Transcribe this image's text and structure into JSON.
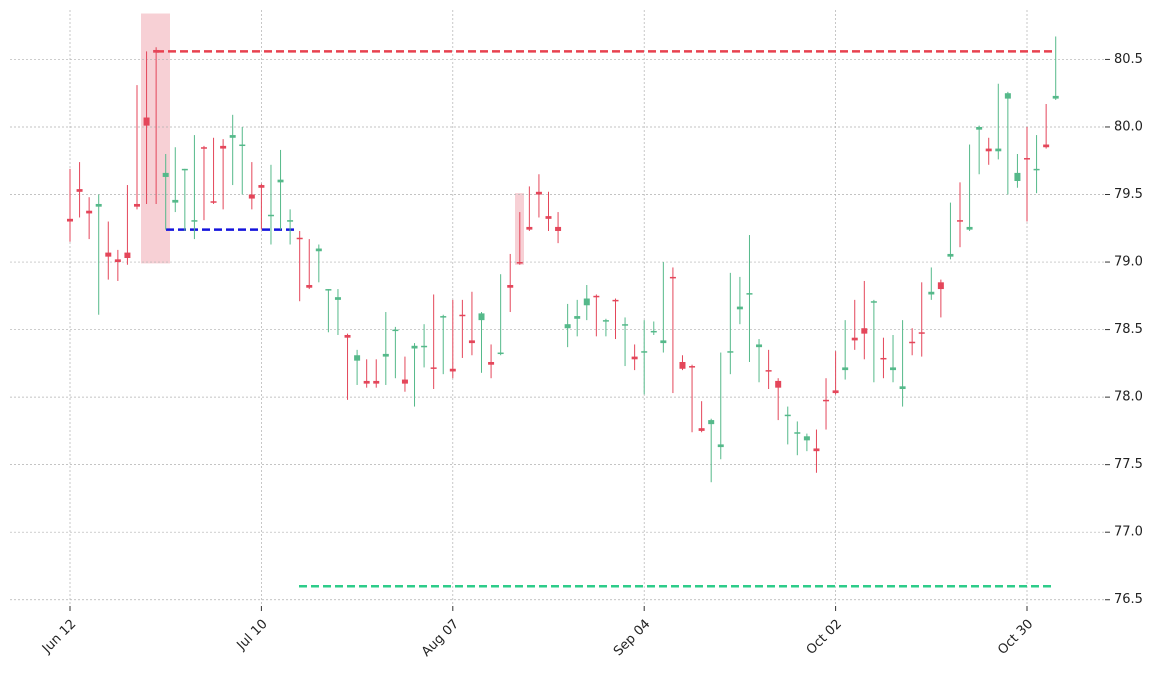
{
  "chart_data": {
    "type": "candlestick",
    "categories": [
      "Jun 12",
      null,
      null,
      null,
      null,
      null,
      null,
      null,
      null,
      null,
      null,
      null,
      null,
      null,
      null,
      null,
      null,
      null,
      null,
      null,
      "Jul 10",
      null,
      null,
      null,
      null,
      null,
      null,
      null,
      null,
      null,
      null,
      null,
      null,
      null,
      null,
      null,
      null,
      null,
      null,
      null,
      "Aug 07",
      null,
      null,
      null,
      null,
      null,
      null,
      null,
      null,
      null,
      null,
      null,
      null,
      null,
      null,
      null,
      null,
      null,
      null,
      null,
      "Sep 04",
      null,
      null,
      null,
      null,
      null,
      null,
      null,
      null,
      null,
      null,
      null,
      null,
      null,
      null,
      null,
      null,
      null,
      null,
      null,
      "Oct 02",
      null,
      null,
      null,
      null,
      null,
      null,
      null,
      null,
      null,
      null,
      null,
      null,
      null,
      null,
      null,
      null,
      null,
      null,
      null,
      "Oct 30",
      null,
      null,
      null
    ],
    "open": [
      79.32,
      79.54,
      79.38,
      79.41,
      79.07,
      79.02,
      79.07,
      79.43,
      80.07,
      80.57,
      79.63,
      79.44,
      79.68,
      79.3,
      79.85,
      79.45,
      79.86,
      79.92,
      79.86,
      79.5,
      79.57,
      79.34,
      79.59,
      79.3,
      79.18,
      78.83,
      79.08,
      78.79,
      78.72,
      78.46,
      78.27,
      78.12,
      78.12,
      78.3,
      78.49,
      78.13,
      78.36,
      78.37,
      78.22,
      78.59,
      78.21,
      78.61,
      78.42,
      78.57,
      78.26,
      78.32,
      78.83,
      79.0,
      79.26,
      79.52,
      79.34,
      79.26,
      78.51,
      78.58,
      78.68,
      78.75,
      78.56,
      78.72,
      78.53,
      78.3,
      78.33,
      78.48,
      78.4,
      78.89,
      78.26,
      78.23,
      77.77,
      77.8,
      77.63,
      78.33,
      78.65,
      78.76,
      78.37,
      78.2,
      78.12,
      77.86,
      77.73,
      77.68,
      77.62,
      77.98,
      78.05,
      78.2,
      78.44,
      78.51,
      78.7,
      78.29,
      78.2,
      78.06,
      78.41,
      78.48,
      78.76,
      78.85,
      79.04,
      79.31,
      79.24,
      79.98,
      79.84,
      79.82,
      80.21,
      79.6,
      79.77,
      79.68,
      79.87,
      80.21
    ],
    "high": [
      79.69,
      79.74,
      79.48,
      79.5,
      79.3,
      79.09,
      79.57,
      80.31,
      80.56,
      80.59,
      79.8,
      79.85,
      79.69,
      79.94,
      79.86,
      79.92,
      79.91,
      80.09,
      80.0,
      79.74,
      79.58,
      79.72,
      79.83,
      79.39,
      79.23,
      79.17,
      79.13,
      78.8,
      78.8,
      78.47,
      78.35,
      78.28,
      78.28,
      78.63,
      78.52,
      78.3,
      78.4,
      78.54,
      78.76,
      78.61,
      78.72,
      78.72,
      78.78,
      78.63,
      78.39,
      78.91,
      79.06,
      79.37,
      79.56,
      79.65,
      79.52,
      79.37,
      78.69,
      78.72,
      78.83,
      78.76,
      78.58,
      78.73,
      78.59,
      78.39,
      78.57,
      78.56,
      79.0,
      78.96,
      78.31,
      78.24,
      77.97,
      77.84,
      78.33,
      78.92,
      78.89,
      79.2,
      78.43,
      78.35,
      78.14,
      77.93,
      77.82,
      77.73,
      77.76,
      78.14,
      78.34,
      78.57,
      78.72,
      78.86,
      78.72,
      78.44,
      78.46,
      78.57,
      78.51,
      78.85,
      78.96,
      78.87,
      79.44,
      79.59,
      79.87,
      80.01,
      79.92,
      80.32,
      80.26,
      79.8,
      80.0,
      79.94,
      80.17,
      80.67
    ],
    "low": [
      79.15,
      79.33,
      79.17,
      78.61,
      78.87,
      78.86,
      78.98,
      79.39,
      79.43,
      79.43,
      79.24,
      79.37,
      79.23,
      79.17,
      79.31,
      79.43,
      79.39,
      79.57,
      79.5,
      79.39,
      79.24,
      79.13,
      79.24,
      79.13,
      78.71,
      78.8,
      78.85,
      78.48,
      78.46,
      77.98,
      78.09,
      78.07,
      78.07,
      78.09,
      78.14,
      78.04,
      77.93,
      78.22,
      78.06,
      78.17,
      78.14,
      78.29,
      78.31,
      78.18,
      78.14,
      78.31,
      78.63,
      78.98,
      79.23,
      79.33,
      79.23,
      79.14,
      78.37,
      78.45,
      78.57,
      78.45,
      78.45,
      78.43,
      78.23,
      78.2,
      78.02,
      78.46,
      78.33,
      78.03,
      78.2,
      77.74,
      77.74,
      77.37,
      77.54,
      78.17,
      78.54,
      78.26,
      78.11,
      78.06,
      77.83,
      77.65,
      77.57,
      77.6,
      77.44,
      77.76,
      78.02,
      78.13,
      78.35,
      78.28,
      78.11,
      78.14,
      78.11,
      77.93,
      78.31,
      78.3,
      78.72,
      78.59,
      79.02,
      79.11,
      79.23,
      79.65,
      79.72,
      79.76,
      79.5,
      79.55,
      79.3,
      79.51,
      79.84,
      80.2
    ],
    "close": [
      79.3,
      79.52,
      79.36,
      79.43,
      79.04,
      79.0,
      79.03,
      79.41,
      80.01,
      80.55,
      79.66,
      79.46,
      79.69,
      79.31,
      79.84,
      79.44,
      79.84,
      79.94,
      79.87,
      79.47,
      79.55,
      79.35,
      79.61,
      79.31,
      79.17,
      78.81,
      79.1,
      78.8,
      78.74,
      78.44,
      78.31,
      78.1,
      78.1,
      78.32,
      78.5,
      78.1,
      78.38,
      78.38,
      78.21,
      78.6,
      78.19,
      78.6,
      78.4,
      78.62,
      78.24,
      78.33,
      78.81,
      78.99,
      79.24,
      79.5,
      79.32,
      79.23,
      78.54,
      78.6,
      78.73,
      78.74,
      78.57,
      78.71,
      78.54,
      78.28,
      78.34,
      78.49,
      78.42,
      78.88,
      78.21,
      78.22,
      77.75,
      77.83,
      77.65,
      78.34,
      78.67,
      78.77,
      78.39,
      78.19,
      78.07,
      77.87,
      77.74,
      77.71,
      77.6,
      77.97,
      78.03,
      78.22,
      78.42,
      78.47,
      78.71,
      78.28,
      78.22,
      78.08,
      78.4,
      78.47,
      78.78,
      78.8,
      79.06,
      79.3,
      79.26,
      80.0,
      79.82,
      79.84,
      80.25,
      79.66,
      79.76,
      79.69,
      79.85,
      80.23
    ],
    "up_color": "#55b98a",
    "down_color": "#e4465a",
    "hlines": [
      {
        "value": 80.56,
        "color": "#e8414f"
      },
      {
        "value": 79.24,
        "color": "#1414dc"
      },
      {
        "value": 76.6,
        "color": "#2ecc8a"
      }
    ],
    "zones": [
      {
        "top": 80.84,
        "bottom": 78.99,
        "color": "#f7d0d5"
      },
      {
        "top": 79.51,
        "bottom": 78.98,
        "color": "#f7d0d5"
      }
    ],
    "ylim": [
      76.35,
      80.94
    ],
    "yticks": [
      76.5,
      {
        "value": 77,
        "label": "77.0"
      },
      77.5,
      {
        "value": 78,
        "label": "78.0"
      },
      78.5,
      {
        "value": 79,
        "label": "79.0"
      },
      79.5,
      {
        "value": 80,
        "label": "80.0"
      },
      80.5
    ],
    "grid": true
  }
}
